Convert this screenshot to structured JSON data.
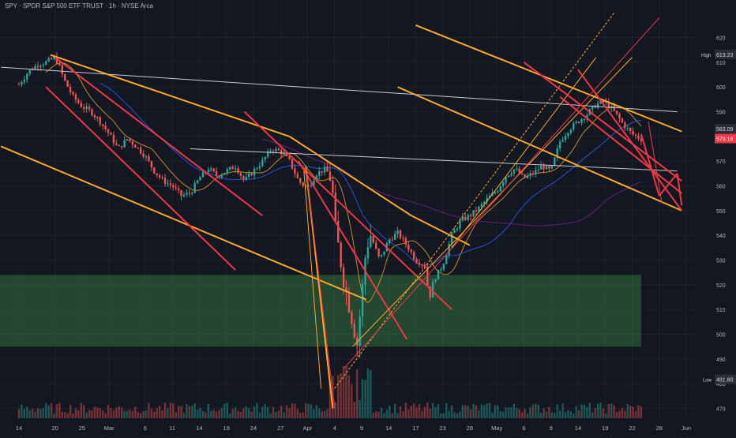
{
  "chart_data": {
    "type": "candlestick",
    "title": "SPY · SPDR S&P 500 ETF TRUST · 1h · NYSE Arca",
    "y_axis": {
      "ylim": [
        466,
        632
      ],
      "ticks": [
        470,
        480,
        490,
        500,
        510,
        520,
        530,
        540,
        550,
        560,
        570,
        580,
        590,
        600,
        610,
        620
      ]
    },
    "x_axis": {
      "ticks": [
        {
          "label": "14",
          "t": 0
        },
        {
          "label": "20",
          "t": 4
        },
        {
          "label": "25",
          "t": 7
        },
        {
          "label": "Mar",
          "t": 10
        },
        {
          "label": "6",
          "t": 14
        },
        {
          "label": "11",
          "t": 17
        },
        {
          "label": "14",
          "t": 20
        },
        {
          "label": "19",
          "t": 23
        },
        {
          "label": "24",
          "t": 26
        },
        {
          "label": "27",
          "t": 29
        },
        {
          "label": "Apr",
          "t": 32
        },
        {
          "label": "4",
          "t": 35
        },
        {
          "label": "9",
          "t": 38
        },
        {
          "label": "14",
          "t": 41
        },
        {
          "label": "17",
          "t": 44
        },
        {
          "label": "23",
          "t": 47
        },
        {
          "label": "28",
          "t": 50
        },
        {
          "label": "May",
          "t": 53
        },
        {
          "label": "6",
          "t": 56
        },
        {
          "label": "9",
          "t": 59
        },
        {
          "label": "14",
          "t": 62
        },
        {
          "label": "19",
          "t": 65
        },
        {
          "label": "22",
          "t": 68
        },
        {
          "label": "28",
          "t": 71
        },
        {
          "label": "Jun",
          "t": 74
        }
      ]
    },
    "price_path": [
      [
        0,
        601
      ],
      [
        1,
        606
      ],
      [
        2,
        609
      ],
      [
        3,
        610
      ],
      [
        4,
        612
      ],
      [
        4.5,
        608
      ],
      [
        5,
        603
      ],
      [
        6,
        596
      ],
      [
        7,
        592
      ],
      [
        8,
        590
      ],
      [
        9,
        586
      ],
      [
        10,
        581
      ],
      [
        11,
        575
      ],
      [
        12,
        579
      ],
      [
        13,
        576
      ],
      [
        14,
        572
      ],
      [
        15,
        566
      ],
      [
        16,
        562
      ],
      [
        17,
        560
      ],
      [
        18,
        556
      ],
      [
        19,
        557
      ],
      [
        20,
        563
      ],
      [
        21,
        567
      ],
      [
        22,
        564
      ],
      [
        23,
        566
      ],
      [
        24,
        568
      ],
      [
        25,
        562
      ],
      [
        26,
        566
      ],
      [
        27,
        570
      ],
      [
        28,
        575
      ],
      [
        29,
        574
      ],
      [
        30,
        570
      ],
      [
        31,
        562
      ],
      [
        32,
        559
      ],
      [
        33,
        565
      ],
      [
        34,
        567
      ],
      [
        34.7,
        562
      ],
      [
        35,
        545
      ],
      [
        36,
        522
      ],
      [
        37,
        505
      ],
      [
        37.5,
        496
      ],
      [
        38,
        515
      ],
      [
        38.5,
        535
      ],
      [
        39,
        540
      ],
      [
        40,
        530
      ],
      [
        41,
        538
      ],
      [
        42,
        541
      ],
      [
        43,
        536
      ],
      [
        44,
        530
      ],
      [
        45,
        528
      ],
      [
        45.5,
        514
      ],
      [
        46,
        522
      ],
      [
        47,
        528
      ],
      [
        48,
        540
      ],
      [
        49,
        546
      ],
      [
        50,
        548
      ],
      [
        51,
        551
      ],
      [
        52,
        555
      ],
      [
        53,
        558
      ],
      [
        54,
        564
      ],
      [
        55,
        567
      ],
      [
        56,
        563
      ],
      [
        57,
        565
      ],
      [
        58,
        568
      ],
      [
        59,
        566
      ],
      [
        60,
        578
      ],
      [
        61,
        583
      ],
      [
        62,
        586
      ],
      [
        63,
        589
      ],
      [
        64,
        593
      ],
      [
        65,
        594
      ],
      [
        66,
        590
      ],
      [
        67,
        585
      ],
      [
        68,
        581
      ],
      [
        69,
        579
      ]
    ],
    "volume_spikes": [
      {
        "t": 35.5,
        "value": 100
      },
      {
        "t": 36.2,
        "value": 120
      },
      {
        "t": 38,
        "value": 90
      }
    ],
    "overlays": {
      "green_zone": {
        "t0": 0,
        "t1": 69,
        "y_low": 495,
        "y_high": 524
      }
    },
    "annotations": {
      "current_price": "583.09",
      "countdown": "579.16",
      "high_label": "High",
      "high_value": "613.23",
      "low_label": "Low",
      "low_value": "481.80"
    },
    "colors": {
      "up": "#26a69a",
      "down": "#ef5350",
      "orange": "#ffa726",
      "red": "#f23645",
      "white_line": "#c9cbd1",
      "zone": "rgba(76,175,80,0.32)"
    }
  }
}
